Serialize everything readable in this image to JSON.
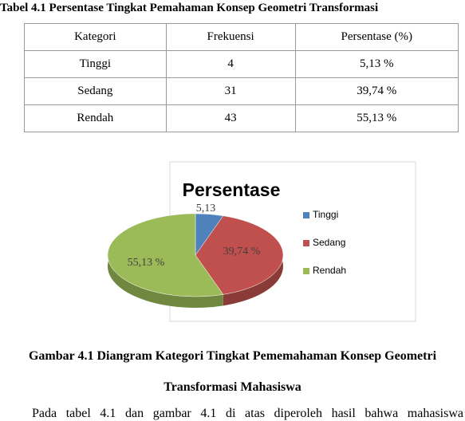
{
  "table_title": "Tabel 4.1 Persentase Tingkat Pemahaman Konsep Geometri Transformasi",
  "table": {
    "header": [
      "Kategori",
      "Frekuensi",
      "Persentase (%)"
    ],
    "rows": [
      [
        "Tinggi",
        "4",
        "5,13 %"
      ],
      [
        "Sedang",
        "31",
        "39,74 %"
      ],
      [
        "Rendah",
        "43",
        "55,13  %"
      ]
    ]
  },
  "chart_data": {
    "type": "pie",
    "title": "Persentase",
    "categories": [
      "Tinggi",
      "Sedang",
      "Rendah"
    ],
    "values": [
      5.13,
      39.74,
      55.13
    ],
    "value_labels": [
      "5,13",
      "39,74 %",
      "55,13 %"
    ],
    "colors": [
      "#4f81bd",
      "#c0504d",
      "#9bbb59"
    ],
    "legend": "right"
  },
  "caption": [
    "Gambar 4.1 Diangram Kategori Tingkat Pememahaman Konsep Geometri",
    "Transformasi Mahasiswa"
  ],
  "paragraph": "Pada tabel 4.1 dan gambar 4.1 di atas diperoleh hasil bahwa mahasiswa"
}
